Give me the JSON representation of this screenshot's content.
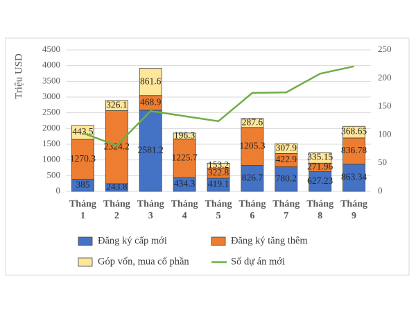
{
  "chart_data": {
    "type": "bar",
    "stacked": true,
    "y_label": "Triệu USD",
    "categories": [
      "Tháng 1",
      "Tháng 2",
      "Tháng 3",
      "Tháng 4",
      "Tháng 5",
      "Tháng 6",
      "Tháng 7",
      "Tháng 8",
      "Tháng 9"
    ],
    "series": [
      {
        "name": "Đăng ký cấp mới",
        "color": "#4472c4",
        "values": [
          385,
          243.8,
          2581.2,
          434.3,
          419.1,
          826.7,
          780.2,
          627.23,
          863.34
        ]
      },
      {
        "name": "Đăng ký tăng thêm",
        "color": "#ed7d31",
        "values": [
          1270.3,
          2324.2,
          468.9,
          1225.7,
          322.8,
          1205.3,
          422.9,
          271.96,
          836.78
        ]
      },
      {
        "name": "Góp vốn, mua cổ phần",
        "color": "#ffe699",
        "values": [
          443.5,
          326.1,
          861.6,
          196.3,
          153.2,
          287.6,
          307.9,
          335.15,
          368.65
        ]
      },
      {
        "name": "Số dự án mới",
        "color": "#70ad47",
        "axis": "y2",
        "values": [
          103,
          81,
          142,
          133,
          124,
          174,
          175,
          208,
          221
        ]
      }
    ],
    "ylim": [
      0,
      4500
    ],
    "yticks": [
      0,
      500,
      1000,
      1500,
      2000,
      2500,
      3000,
      3500,
      4000,
      4500
    ],
    "y2lim": [
      0,
      250
    ],
    "y2ticks": [
      0,
      50,
      100,
      150,
      200,
      250
    ],
    "grid": true
  }
}
